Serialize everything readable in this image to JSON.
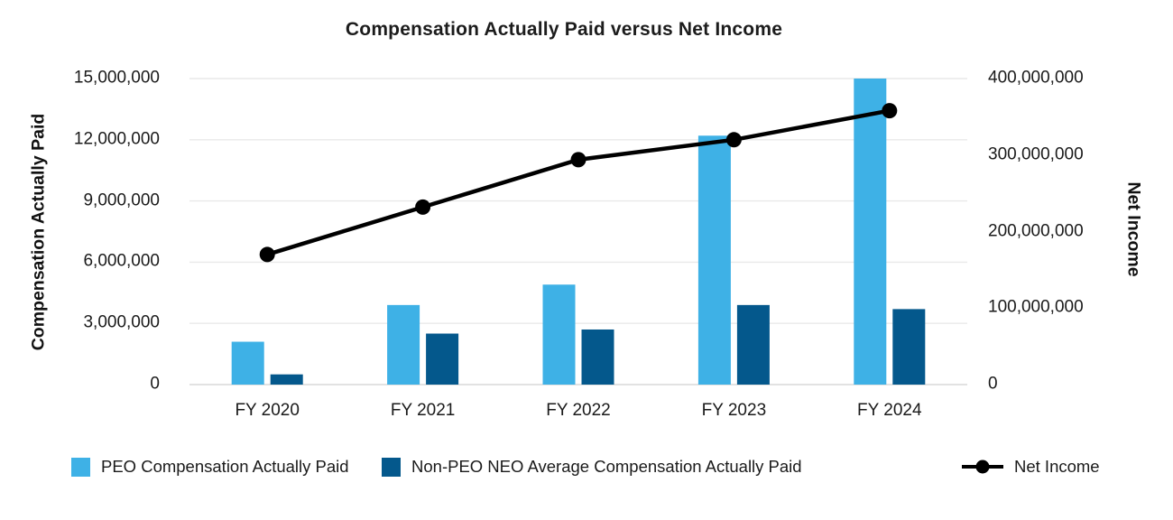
{
  "title": "Compensation Actually Paid versus Net Income",
  "chart_data": {
    "type": "combo-bar-line",
    "title": "Compensation Actually Paid versus Net Income",
    "categories": [
      "FY 2020",
      "FY 2021",
      "FY 2022",
      "FY 2023",
      "FY 2024"
    ],
    "series": [
      {
        "name": "PEO Compensation Actually Paid",
        "type": "bar",
        "axis": "left",
        "color": "#3EB1E6",
        "values": [
          2100000,
          3900000,
          4900000,
          12200000,
          15000000
        ]
      },
      {
        "name": "Non-PEO NEO Average Compensation Actually Paid",
        "type": "bar",
        "axis": "left",
        "color": "#04588C",
        "values": [
          500000,
          2500000,
          2700000,
          3900000,
          3700000
        ]
      },
      {
        "name": "Net Income",
        "type": "line",
        "axis": "right",
        "color": "#000000",
        "marker": "circle",
        "values": [
          170000000,
          232000000,
          294000000,
          320000000,
          358000000
        ]
      }
    ],
    "left_axis": {
      "label": "Compensation Actually Paid",
      "min": 0,
      "max": 15000000,
      "ticks": [
        "15,000,000",
        "12,000,000",
        "9,000,000",
        "6,000,000",
        "3,000,000",
        "0"
      ]
    },
    "right_axis": {
      "label": "Net Income",
      "min": 0,
      "max": 400000000,
      "ticks": [
        "400,000,000",
        "300,000,000",
        "200,000,000",
        "100,000,000",
        "0"
      ]
    },
    "grid": true,
    "legend_position": "bottom",
    "background": "#FFFFFF",
    "gridline_color": "#E9E9E9",
    "axisline_color": "#D8D8D8",
    "text_color": "#1A1A1A"
  }
}
